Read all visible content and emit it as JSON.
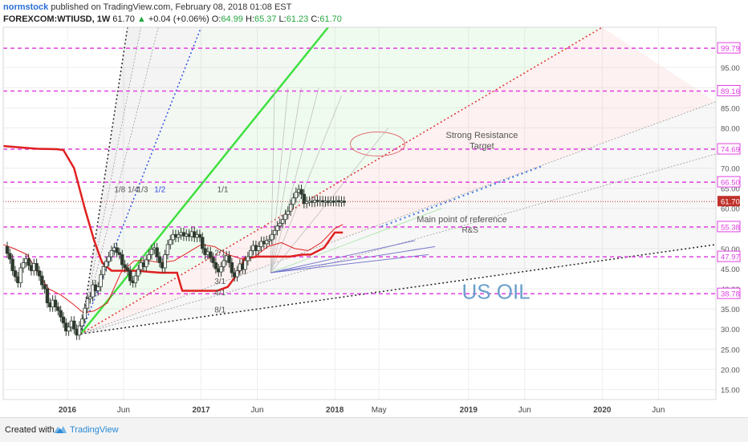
{
  "header": {
    "author": "normstock",
    "published": "published on TradingView.com, February 08, 2018 01:08 EST",
    "symbol": "FOREXCOM:WTIUSD, 1W",
    "last": "61.70",
    "change": "+0.04 (+0.06%)",
    "o_label": "O:",
    "o_val": "64.99",
    "h_label": "H:",
    "h_val": "65.37",
    "l_label": "L:",
    "l_val": "61.23",
    "c_label": "C:",
    "c_val": "61.70"
  },
  "footer": {
    "created_with": "Created with",
    "brand": "TradingView"
  },
  "colors": {
    "candle": "#2e3a2e",
    "ichimoku_red": "#e02020",
    "fan_green": "#40e040",
    "fan_red": "#e03030",
    "fan_blue": "#3050e0",
    "fan_black": "#222222",
    "level_magenta": "#e040e0",
    "price_red": "#c0302a",
    "annotation_blue": "#6aa0cc"
  },
  "chart_data": {
    "type": "candlestick",
    "interval": "1W",
    "x_tick_labels": [
      "2016",
      "Jun",
      "2017",
      "Jun",
      "2018",
      "May",
      "2019",
      "Jun",
      "2020",
      "Jun"
    ],
    "x_ticks": [
      2016.0,
      2016.42,
      2017.0,
      2017.42,
      2018.0,
      2018.33,
      2019.0,
      2019.42,
      2020.0,
      2020.42
    ],
    "xlim": [
      2015.52,
      2020.85
    ],
    "y_ticks": [
      15,
      20,
      25,
      30,
      35,
      40,
      45,
      50,
      55,
      60,
      65,
      70,
      75,
      80,
      85,
      90,
      95
    ],
    "ylim": [
      12.5,
      105
    ],
    "y_tick_labels": [
      "15.00",
      "20.00",
      "25.00",
      "30.00",
      "35.00",
      "40.00",
      "45.00",
      "50.00",
      "55.00",
      "60.00",
      "65.00",
      "70.00",
      "75.00",
      "80.00",
      "85.00",
      "90.00",
      "95.00"
    ],
    "levels": [
      {
        "value": 99.79,
        "label": "99.79"
      },
      {
        "value": 89.16,
        "label": "89.16"
      },
      {
        "value": 74.69,
        "label": "74.69"
      },
      {
        "value": 66.5,
        "label": "66.50"
      },
      {
        "value": 55.38,
        "label": "55.38"
      },
      {
        "value": 47.97,
        "label": "47.97"
      },
      {
        "value": 38.78,
        "label": "38.78"
      }
    ],
    "last_price": {
      "value": 61.7,
      "label": "61.70"
    },
    "candles_x": [
      2015.53,
      2015.55,
      2015.57,
      2015.59,
      2015.61,
      2015.63,
      2015.65,
      2015.67,
      2015.69,
      2015.71,
      2015.73,
      2015.75,
      2015.77,
      2015.79,
      2015.81,
      2015.83,
      2015.85,
      2015.87,
      2015.89,
      2015.91,
      2015.93,
      2015.95,
      2015.97,
      2015.99,
      2016.01,
      2016.03,
      2016.05,
      2016.07,
      2016.09,
      2016.11,
      2016.13,
      2016.15,
      2016.17,
      2016.19,
      2016.21,
      2016.23,
      2016.25,
      2016.27,
      2016.29,
      2016.31,
      2016.33,
      2016.35,
      2016.37,
      2016.39,
      2016.41,
      2016.43,
      2016.45,
      2016.47,
      2016.49,
      2016.51,
      2016.53,
      2016.55,
      2016.57,
      2016.59,
      2016.61,
      2016.63,
      2016.65,
      2016.67,
      2016.69,
      2016.71,
      2016.73,
      2016.75,
      2016.77,
      2016.79,
      2016.81,
      2016.83,
      2016.85,
      2016.87,
      2016.89,
      2016.91,
      2016.93,
      2016.95,
      2016.97,
      2016.99,
      2017.01,
      2017.03,
      2017.05,
      2017.07,
      2017.09,
      2017.11,
      2017.13,
      2017.15,
      2017.17,
      2017.19,
      2017.21,
      2017.23,
      2017.25,
      2017.27,
      2017.29,
      2017.31,
      2017.33,
      2017.35,
      2017.37,
      2017.39,
      2017.41,
      2017.43,
      2017.45,
      2017.47,
      2017.49,
      2017.51,
      2017.53,
      2017.55,
      2017.57,
      2017.59,
      2017.61,
      2017.63,
      2017.65,
      2017.67,
      2017.69,
      2017.71,
      2017.73,
      2017.75,
      2017.77,
      2017.79,
      2017.81,
      2017.83,
      2017.85,
      2017.87,
      2017.89,
      2017.91,
      2017.93,
      2017.95,
      2017.97,
      2017.99,
      2018.01,
      2018.03,
      2018.05,
      2018.07
    ],
    "candles_close": [
      50.5,
      48.8,
      47.4,
      44.5,
      43.0,
      41.5,
      45.2,
      46.5,
      47.5,
      45.8,
      44.5,
      46.3,
      44.5,
      43.2,
      41.0,
      40.0,
      36.5,
      35.5,
      37.2,
      35.5,
      34.6,
      33.0,
      31.5,
      29.5,
      30.5,
      32.0,
      30.0,
      28.5,
      30.8,
      32.5,
      35.2,
      37.5,
      38.0,
      41.0,
      39.5,
      40.5,
      43.5,
      45.5,
      46.8,
      48.0,
      49.5,
      50.2,
      49.0,
      48.5,
      46.0,
      45.2,
      44.5,
      42.0,
      41.5,
      43.2,
      44.8,
      46.5,
      45.5,
      47.2,
      48.5,
      49.8,
      50.2,
      48.0,
      46.5,
      45.2,
      48.5,
      51.0,
      52.2,
      53.5,
      52.8,
      53.4,
      54.0,
      53.1,
      53.6,
      53.0,
      54.2,
      52.8,
      53.5,
      52.8,
      50.0,
      48.5,
      49.2,
      47.8,
      46.5,
      45.0,
      44.2,
      45.5,
      47.0,
      48.2,
      46.5,
      44.0,
      43.0,
      44.5,
      46.2,
      44.8,
      47.0,
      48.0,
      49.5,
      50.8,
      49.5,
      50.5,
      51.8,
      51.2,
      52.0,
      52.2,
      53.5,
      54.5,
      55.6,
      56.3,
      57.2,
      58.5,
      59.3,
      61.0,
      62.6,
      64.0,
      64.7,
      63.5,
      61.2,
      61.7,
      61.8,
      61.5,
      62.0,
      61.7,
      61.9,
      61.6,
      61.8,
      61.7,
      61.8,
      61.7,
      61.9,
      61.6,
      61.8,
      61.7
    ],
    "ichimoku_baseline_x": [
      2015.52,
      2015.7,
      2015.78,
      2015.92,
      2015.97,
      2016.05,
      2016.13,
      2016.2,
      2016.26,
      2016.33,
      2016.43,
      2016.52,
      2016.62,
      2016.7,
      2016.82,
      2016.85,
      2016.86,
      2017.12,
      2017.2,
      2017.3,
      2017.32,
      2017.42,
      2017.5,
      2017.6,
      2017.66,
      2017.76,
      2017.82,
      2017.92,
      2018.0,
      2018.06
    ],
    "ichimoku_baseline_y": [
      75.5,
      75.0,
      74.8,
      74.7,
      74.5,
      70.0,
      60.0,
      52.0,
      46.5,
      44.5,
      44.5,
      44.5,
      44.2,
      44.0,
      44.0,
      40.5,
      39.5,
      39.5,
      40.5,
      45.0,
      47.5,
      48.0,
      48.0,
      48.0,
      48.0,
      48.5,
      48.5,
      50.2,
      54.0,
      54.0
    ],
    "ichimoku_cloud_x": [
      2015.52,
      2015.6,
      2015.7,
      2015.78,
      2015.86,
      2015.95,
      2016.05,
      2016.12,
      2016.2,
      2016.3,
      2016.4,
      2016.5,
      2016.6,
      2016.7,
      2016.8,
      2016.9,
      2017.0,
      2017.1,
      2017.2,
      2017.3,
      2017.4,
      2017.5,
      2017.6,
      2017.7,
      2017.8,
      2017.9,
      2018.0,
      2018.06
    ],
    "ichimoku_cloud_y": [
      51.0,
      50.0,
      48.5,
      44.0,
      40.0,
      38.5,
      36.0,
      34.0,
      34.5,
      36.5,
      44.0,
      47.0,
      47.0,
      46.5,
      47.0,
      49.0,
      51.0,
      50.5,
      48.5,
      47.5,
      48.0,
      50.5,
      51.5,
      50.0,
      49.5,
      51.5,
      55.0,
      56.0
    ],
    "fan_anchor": {
      "x": 2016.1,
      "y": 28.8
    },
    "fan_lines": [
      {
        "ratio": "1/8",
        "end_x": 2016.45,
        "end_y": 105,
        "color": "black"
      },
      {
        "ratio": "1/4",
        "end_x": 2016.55,
        "end_y": 105,
        "color": "gray"
      },
      {
        "ratio": "1/3",
        "end_x": 2016.68,
        "end_y": 105,
        "color": "gray"
      },
      {
        "ratio": "1/2",
        "end_x": 2017.0,
        "end_y": 105,
        "color": "blue"
      },
      {
        "ratio": "1/1",
        "end_x": 2017.95,
        "end_y": 105,
        "color": "green"
      },
      {
        "ratio": "2/1",
        "end_x": 2020.0,
        "end_y": 105,
        "color": "red"
      },
      {
        "ratio": "3/1",
        "end_x": 2020.85,
        "end_y": 86.5,
        "color": "gray"
      },
      {
        "ratio": "4/1",
        "end_x": 2020.85,
        "end_y": 73.5,
        "color": "gray"
      },
      {
        "ratio": "8/1",
        "end_x": 2020.85,
        "end_y": 51.0,
        "color": "black"
      }
    ],
    "annotations": [
      {
        "text": "Strong Resistance",
        "x": 2019.1,
        "y": 77.5
      },
      {
        "text": "Target",
        "x": 2019.1,
        "y": 74.8
      },
      {
        "text": "Main point of reference",
        "x": 2018.95,
        "y": 56.6
      },
      {
        "text": "R&S",
        "x": 2018.95,
        "y": 54.0
      },
      {
        "text": "US OIL",
        "x": 2018.95,
        "y": 37.5
      },
      {
        "text": "1/8",
        "x": 2016.35,
        "y": 64.0
      },
      {
        "text": "1/4",
        "x": 2016.45,
        "y": 64.0
      },
      {
        "text": "1/3",
        "x": 2016.52,
        "y": 64.0
      },
      {
        "text": "1/2",
        "x": 2016.65,
        "y": 64.0
      },
      {
        "text": "1/1",
        "x": 2017.12,
        "y": 64.0
      },
      {
        "text": "2/1",
        "x": 2017.1,
        "y": 48.3
      },
      {
        "text": "3/1",
        "x": 2017.1,
        "y": 41.2
      },
      {
        "text": "4/1",
        "x": 2017.1,
        "y": 38.4
      },
      {
        "text": "8/1",
        "x": 2017.1,
        "y": 34.1
      }
    ],
    "forecast_points_x": [
      2018.35,
      2018.55,
      2018.75,
      2018.95,
      2019.15,
      2019.35,
      2019.55
    ],
    "forecast_points_y": [
      55.5,
      58.0,
      60.5,
      63.0,
      65.5,
      68.0,
      70.5
    ]
  }
}
